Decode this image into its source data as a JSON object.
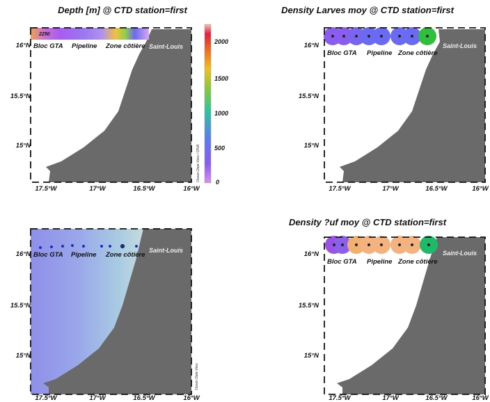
{
  "panels": [
    {
      "title": "Depth [m] @ CTD station=first",
      "x_ticks": [
        "17.5°W",
        "17°W",
        "16.5°W",
        "16°W"
      ],
      "y_ticks": [
        "16°N",
        "15.5°N",
        "15°N"
      ],
      "regions": [
        "Bloc GTA",
        "Pipeline",
        "Zone côtière"
      ],
      "city": "Saint-Louis",
      "colorbar_ticks": [
        "2000",
        "1500",
        "1000",
        "500",
        "0"
      ],
      "contour_label": "2250",
      "credit": "Ocean Data View / DIVA"
    },
    {
      "title": "Density Larves moy @ CTD station=first",
      "x_ticks": [
        "17.5°W",
        "17°W",
        "16.5°W",
        "16°W"
      ],
      "y_ticks": [
        "16°N",
        "15.5°N",
        "15°N"
      ],
      "regions": [
        "Bloc GTA",
        "Pipeline",
        "Zone côtière"
      ],
      "city": "Saint-Louis"
    },
    {
      "title": "",
      "x_ticks": [
        "17.5°W",
        "17°W",
        "16.5°W",
        "16°W"
      ],
      "y_ticks": [
        "16°N",
        "15.5°N",
        "15°N"
      ],
      "regions": [
        "Bloc GTA",
        "Pipeline",
        "Zone côtière"
      ],
      "city": "Saint-Louis",
      "credit": "Ocean Data View"
    },
    {
      "title": "Density ?uf moy @ CTD station=first",
      "x_ticks": [
        "17.5°W",
        "17°W",
        "16.5°W",
        "16°W"
      ],
      "y_ticks": [
        "16°N",
        "15.5°N",
        "15°N"
      ],
      "regions": [
        "Bloc GTA",
        "Pipeline",
        "Zone côtière"
      ],
      "city": "Saint-Louis"
    }
  ],
  "colors": {
    "land": "#6a6a6a",
    "frame": "#111111",
    "larvae_band": "#6a6af2",
    "larvae_end": "#2fbf3c",
    "egg_band": "#f4b27f",
    "egg_start": "#9a52e6",
    "egg_end": "#1fb96a",
    "ocean_deep": "#8f8fe8",
    "ocean_shallow": "#e6e3dc"
  }
}
